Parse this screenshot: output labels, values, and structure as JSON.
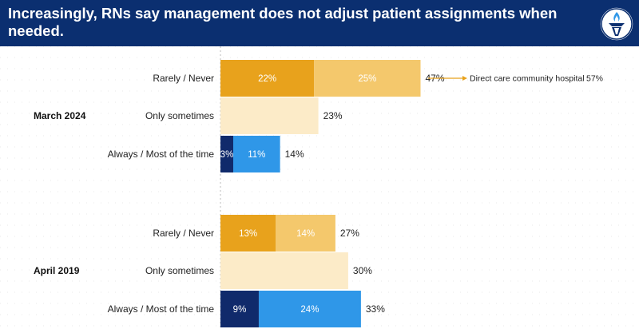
{
  "header": {
    "title": "Increasingly, RNs say management does not adjust patient assignments when needed."
  },
  "colors": {
    "header_bg": "#0b2f70",
    "rarely_a": "#e8a21c",
    "rarely_b": "#f4c86c",
    "sometimes": "#fcebc8",
    "always_a": "#102a6b",
    "always_b": "#2f97e8",
    "annotation": "#e8a21c"
  },
  "chart_data": {
    "type": "bar",
    "orientation": "horizontal",
    "stacked": true,
    "title": "Increasingly, RNs say management does not adjust patient assignments when needed.",
    "xlim": [
      0,
      50
    ],
    "groups": [
      {
        "label": "March 2024",
        "rows": [
          {
            "category": "Rarely / Never",
            "total": 47,
            "total_label": "47%",
            "segments": [
              {
                "value": 22,
                "label": "22%",
                "color_key": "rarely_a"
              },
              {
                "value": 25,
                "label": "25%",
                "color_key": "rarely_b"
              }
            ]
          },
          {
            "category": "Only sometimes",
            "total": 23,
            "total_label": "23%",
            "segments": [
              {
                "value": 23,
                "label": "",
                "color_key": "sometimes"
              }
            ]
          },
          {
            "category": "Always / Most of the time",
            "total": 14,
            "total_label": "14%",
            "segments": [
              {
                "value": 3,
                "label": "3%",
                "color_key": "always_a"
              },
              {
                "value": 11,
                "label": "11%",
                "color_key": "always_b"
              }
            ]
          }
        ]
      },
      {
        "label": "April 2019",
        "rows": [
          {
            "category": "Rarely / Never",
            "total": 27,
            "total_label": "27%",
            "segments": [
              {
                "value": 13,
                "label": "13%",
                "color_key": "rarely_a"
              },
              {
                "value": 14,
                "label": "14%",
                "color_key": "rarely_b"
              }
            ]
          },
          {
            "category": "Only sometimes",
            "total": 30,
            "total_label": "30%",
            "segments": [
              {
                "value": 30,
                "label": "",
                "color_key": "sometimes"
              }
            ]
          },
          {
            "category": "Always / Most of the time",
            "total": 33,
            "total_label": "33%",
            "segments": [
              {
                "value": 9,
                "label": "9%",
                "color_key": "always_a"
              },
              {
                "value": 24,
                "label": "24%",
                "color_key": "always_b"
              }
            ]
          }
        ]
      }
    ],
    "annotation": {
      "text": "Direct care community hospital",
      "value_label": "57%"
    }
  }
}
